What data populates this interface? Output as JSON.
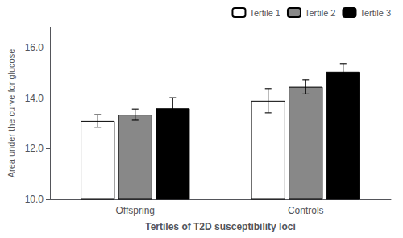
{
  "chart_data": {
    "type": "bar",
    "xlabel": "Tertiles of T2D susceptibility loci",
    "ylabel": "Area under the curve for glucose",
    "categories": [
      "Offspring",
      "Controls"
    ],
    "series": [
      {
        "name": "Tertile 1",
        "color": "#ffffff",
        "values": [
          13.1,
          13.9
        ],
        "errors": [
          0.25,
          0.48
        ]
      },
      {
        "name": "Tertile 2",
        "color": "#888888",
        "values": [
          13.35,
          14.45
        ],
        "errors": [
          0.22,
          0.28
        ]
      },
      {
        "name": "Tertile 3",
        "color": "#000000",
        "values": [
          13.6,
          15.05
        ],
        "errors": [
          0.42,
          0.32
        ]
      }
    ],
    "ylim": [
      10.0,
      16.8
    ],
    "yticks": [
      {
        "value": 10.0,
        "label": "10.0"
      },
      {
        "value": 12.0,
        "label": "12.0"
      },
      {
        "value": 14.0,
        "label": "14.0"
      },
      {
        "value": 16.0,
        "label": "16.0"
      }
    ],
    "grid": false,
    "legend": "upper right"
  }
}
